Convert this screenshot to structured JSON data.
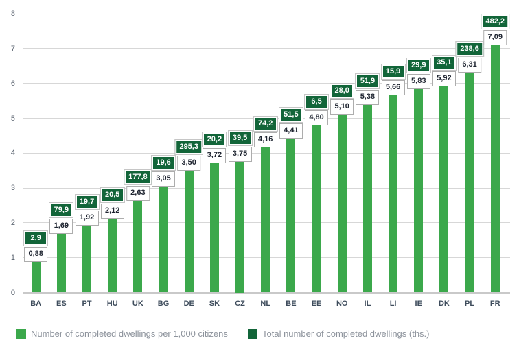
{
  "legend": {
    "items": [
      {
        "label": "Number of completed dwellings per 1,000 citizens",
        "color": "#3BA84B"
      },
      {
        "label": "Total number of completed dwellings (ths.)",
        "color": "#126539"
      }
    ]
  },
  "colors": {
    "bar_light_green": "#3BA84B",
    "box_dark_green": "#126539",
    "gridline": "#d7d7d7",
    "axis_text": "#5b6470",
    "category_text": "#3e4c5c",
    "legend_text": "#8d939c"
  },
  "chart_data": {
    "type": "bar",
    "categories": [
      "BA",
      "ES",
      "PT",
      "HU",
      "UK",
      "BG",
      "DE",
      "SK",
      "CZ",
      "NL",
      "BE",
      "EE",
      "NO",
      "IL",
      "LI",
      "IE",
      "DK",
      "PL",
      "FR"
    ],
    "series": [
      {
        "name": "Number of completed dwellings per 1,000 citizens",
        "role": "bar-height-and-white-label",
        "color": "#3BA84B",
        "decimals": 2,
        "decimal_separator": ",",
        "values": [
          0.88,
          1.69,
          1.92,
          2.12,
          2.63,
          3.05,
          3.5,
          3.72,
          3.75,
          4.16,
          4.41,
          4.8,
          5.1,
          5.38,
          5.66,
          5.83,
          5.92,
          6.31,
          7.09
        ]
      },
      {
        "name": "Total number of completed dwellings (ths.)",
        "role": "dark-label-only",
        "color": "#126539",
        "decimals": 1,
        "decimal_separator": ",",
        "values": [
          2.9,
          79.9,
          19.7,
          20.5,
          177.8,
          19.6,
          295.3,
          20.2,
          39.5,
          74.2,
          51.5,
          6.5,
          28.0,
          51.9,
          15.9,
          29.9,
          35.1,
          238.6,
          482.2
        ]
      }
    ],
    "title": "",
    "xlabel": "",
    "ylabel": "",
    "ylim": [
      0,
      8
    ],
    "yticks": [
      0,
      1,
      2,
      3,
      4,
      5,
      6,
      7,
      8
    ],
    "grid": true,
    "legend_position": "bottom"
  }
}
